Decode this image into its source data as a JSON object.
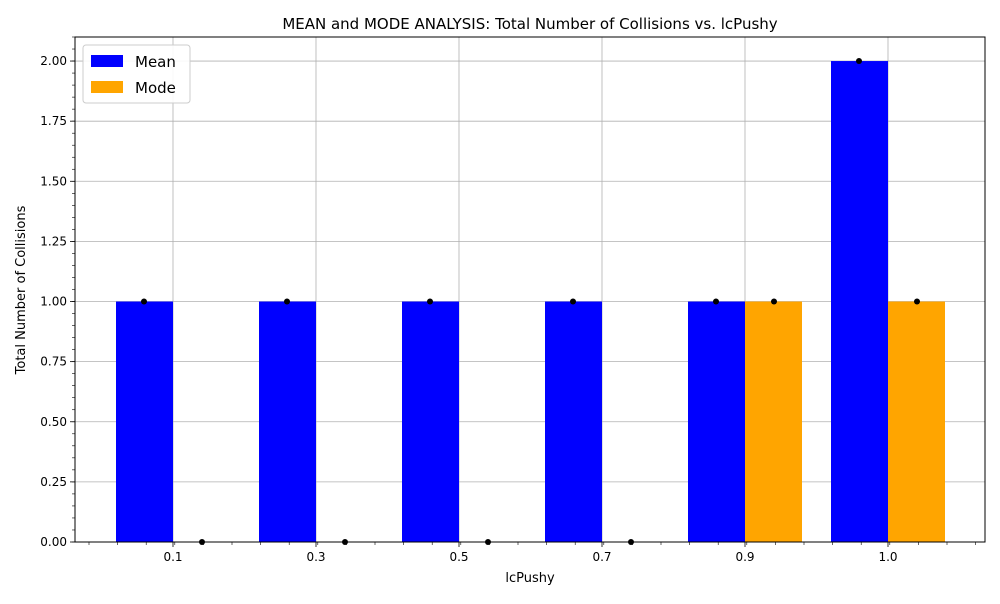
{
  "chart_data": {
    "type": "bar",
    "title": "MEAN and MODE ANALYSIS: Total Number of Collisions vs. lcPushy",
    "xlabel": "lcPushy",
    "ylabel": "Total Number of Collisions",
    "categories": [
      "0.1",
      "0.3",
      "0.5",
      "0.7",
      "0.9",
      "1.0"
    ],
    "series": [
      {
        "name": "Mean",
        "color": "#0000ff",
        "values": [
          1,
          1,
          1,
          1,
          1,
          2
        ]
      },
      {
        "name": "Mode",
        "color": "#ffa500",
        "values": [
          0,
          0,
          0,
          0,
          1,
          1
        ]
      }
    ],
    "ylim": [
      0,
      2.1
    ],
    "yticks": [
      "0.00",
      "0.25",
      "0.50",
      "0.75",
      "1.00",
      "1.25",
      "1.50",
      "1.75",
      "2.00"
    ],
    "grid": true,
    "legend_position": "top-left",
    "marker_color": "#000000"
  }
}
